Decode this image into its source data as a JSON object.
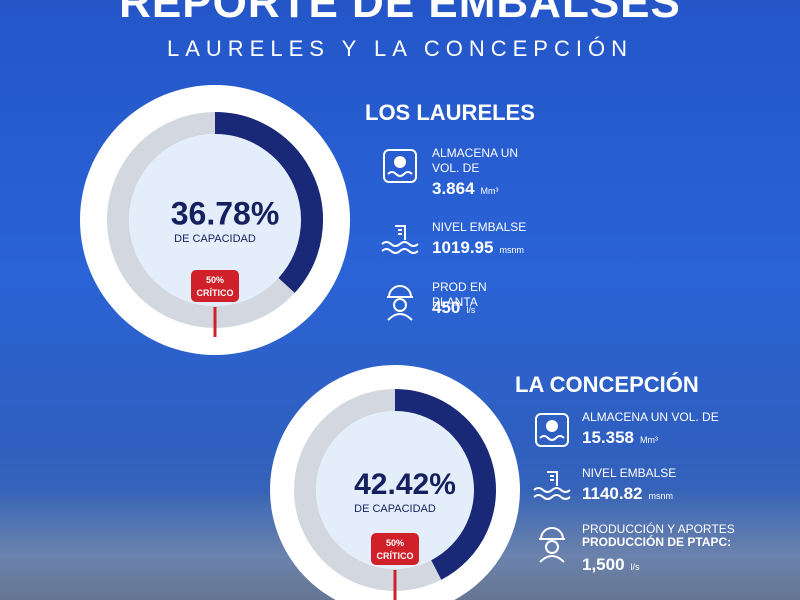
{
  "header": {
    "title": "REPORTE DE EMBALSES",
    "subtitle": "LAURELES Y LA CONCEPCIÓN"
  },
  "reservoirs": [
    {
      "name": "LOS LAURELES",
      "capacity": {
        "value": 36.78,
        "label": "36.78%"
      },
      "capacity_caption": "DE CAPACIDAD",
      "critical": {
        "value": 50,
        "label": "50%"
      },
      "critical_caption": "CRÍTICO",
      "stats": [
        {
          "label": "ALMACENA UN VOL. DE",
          "value": "3.864",
          "unit": "Mm³"
        },
        {
          "label": "NIVEL EMBALSE",
          "value": "1019.95",
          "unit": "msnm"
        },
        {
          "label": "PROD EN PLANTA",
          "value": "450",
          "unit": "l/s"
        }
      ]
    },
    {
      "name": "LA CONCEPCIÓN",
      "capacity": {
        "value": 42.42,
        "label": "42.42%"
      },
      "capacity_caption": "DE CAPACIDAD",
      "critical": {
        "value": 50,
        "label": "50%"
      },
      "critical_caption": "CRÍTICO",
      "stats": [
        {
          "label": "ALMACENA UN VOL. DE",
          "value": "15.358",
          "unit": "Mm³"
        },
        {
          "label": "NIVEL EMBALSE",
          "value": "1140.82",
          "unit": "msnm"
        },
        {
          "label": "PRODUCCIÓN Y APORTES",
          "sublabel": "PRODUCCIÓN DE PTAPC:",
          "value": "1,500",
          "unit": "l/s"
        }
      ]
    }
  ]
}
